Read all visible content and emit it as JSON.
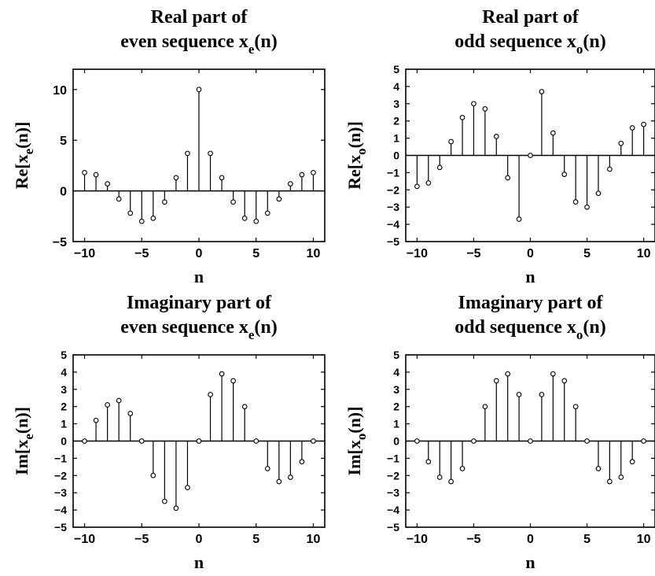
{
  "chart_data": [
    {
      "type": "stem",
      "title_line1": "Real part of",
      "title_line2_prefix": "even sequence x",
      "title_line2_sub": "e",
      "title_line2_suffix": "(n)",
      "xlabel": "n",
      "ylabel_prefix": "Re[x",
      "ylabel_sub": "e",
      "ylabel_suffix": "(n)]",
      "xlim": [
        -11,
        11
      ],
      "ylim": [
        -5,
        12
      ],
      "xticks": [
        -10,
        -5,
        0,
        5,
        10
      ],
      "yticks": [
        -5,
        0,
        5,
        10
      ],
      "x": [
        -10,
        -9,
        -8,
        -7,
        -6,
        -5,
        -4,
        -3,
        -2,
        -1,
        0,
        1,
        2,
        3,
        4,
        5,
        6,
        7,
        8,
        9,
        10
      ],
      "values": [
        1.8,
        1.6,
        0.7,
        -0.8,
        -2.2,
        -3.0,
        -2.7,
        -1.1,
        1.3,
        3.7,
        10.0,
        3.7,
        1.3,
        -1.1,
        -2.7,
        -3.0,
        -2.2,
        -0.8,
        0.7,
        1.6,
        1.8
      ]
    },
    {
      "type": "stem",
      "title_line1": "Real part of",
      "title_line2_prefix": "odd sequence x",
      "title_line2_sub": "o",
      "title_line2_suffix": "(n)",
      "xlabel": "n",
      "ylabel_prefix": "Re[x",
      "ylabel_sub": "o",
      "ylabel_suffix": "(n)]",
      "xlim": [
        -11,
        11
      ],
      "ylim": [
        -5,
        5
      ],
      "xticks": [
        -10,
        -5,
        0,
        5,
        10
      ],
      "yticks": [
        -5,
        -4,
        -3,
        -2,
        -1,
        0,
        1,
        2,
        3,
        4,
        5
      ],
      "x": [
        -10,
        -9,
        -8,
        -7,
        -6,
        -5,
        -4,
        -3,
        -2,
        -1,
        0,
        1,
        2,
        3,
        4,
        5,
        6,
        7,
        8,
        9,
        10
      ],
      "values": [
        -1.8,
        -1.6,
        -0.7,
        0.8,
        2.2,
        3.0,
        2.7,
        1.1,
        -1.3,
        -3.7,
        0.0,
        3.7,
        1.3,
        -1.1,
        -2.7,
        -3.0,
        -2.2,
        -0.8,
        0.7,
        1.6,
        1.8
      ]
    },
    {
      "type": "stem",
      "title_line1": "Imaginary part of",
      "title_line2_prefix": "even sequence x",
      "title_line2_sub": "e",
      "title_line2_suffix": "(n)",
      "xlabel": "n",
      "ylabel_prefix": "Im[x",
      "ylabel_sub": "e",
      "ylabel_suffix": "(n)]",
      "xlim": [
        -11,
        11
      ],
      "ylim": [
        -5,
        5
      ],
      "xticks": [
        -10,
        -5,
        0,
        5,
        10
      ],
      "yticks": [
        -5,
        -4,
        -3,
        -2,
        -1,
        0,
        1,
        2,
        3,
        4,
        5
      ],
      "x": [
        -10,
        -9,
        -8,
        -7,
        -6,
        -5,
        -4,
        -3,
        -2,
        -1,
        0,
        1,
        2,
        3,
        4,
        5,
        6,
        7,
        8,
        9,
        10
      ],
      "values": [
        0.0,
        1.2,
        2.1,
        2.35,
        1.6,
        0.0,
        -2.0,
        -3.5,
        -3.9,
        -2.7,
        0.0,
        2.7,
        3.9,
        3.5,
        2.0,
        0.0,
        -1.6,
        -2.35,
        -2.1,
        -1.2,
        0.0
      ]
    },
    {
      "type": "stem",
      "title_line1": "Imaginary part of",
      "title_line2_prefix": "odd sequence x",
      "title_line2_sub": "o",
      "title_line2_suffix": "(n)",
      "xlabel": "n",
      "ylabel_prefix": "Im[x",
      "ylabel_sub": "o",
      "ylabel_suffix": "(n)]",
      "xlim": [
        -11,
        11
      ],
      "ylim": [
        -5,
        5
      ],
      "xticks": [
        -10,
        -5,
        0,
        5,
        10
      ],
      "yticks": [
        -5,
        -4,
        -3,
        -2,
        -1,
        0,
        1,
        2,
        3,
        4,
        5
      ],
      "x": [
        -10,
        -9,
        -8,
        -7,
        -6,
        -5,
        -4,
        -3,
        -2,
        -1,
        0,
        1,
        2,
        3,
        4,
        5,
        6,
        7,
        8,
        9,
        10
      ],
      "values": [
        0.0,
        -1.2,
        -2.1,
        -2.35,
        -1.6,
        0.0,
        2.0,
        3.5,
        3.9,
        2.7,
        0.0,
        2.7,
        3.9,
        3.5,
        2.0,
        0.0,
        -1.6,
        -2.35,
        -2.1,
        -1.2,
        0.0
      ]
    }
  ]
}
